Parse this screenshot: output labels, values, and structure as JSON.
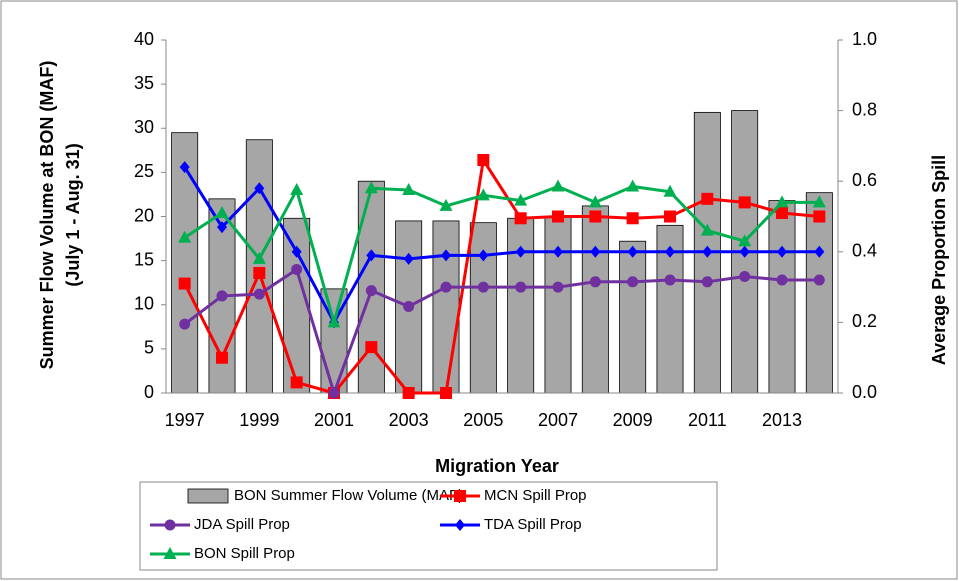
{
  "chart_data": {
    "type": "combo",
    "xlabel": "Migration Year",
    "ylabel": [
      "Summer Flow Volume at BON (MAF)",
      "(July 1 - Aug. 31)"
    ],
    "y2label": "Average Proportion Spill",
    "categories": [
      "1997",
      null,
      "1999",
      null,
      "2001",
      null,
      "2003",
      null,
      "2005",
      null,
      "2007",
      null,
      "2009",
      null,
      "2011",
      null,
      "2013",
      null
    ],
    "ylim": [
      0,
      40
    ],
    "yticks": [
      0,
      5,
      10,
      15,
      20,
      25,
      30,
      35,
      40
    ],
    "y2lim": [
      0,
      1
    ],
    "y2ticks": [
      {
        "value": 0,
        "label": "0.0"
      },
      0.2,
      0.4,
      0.6,
      0.8,
      {
        "value": 1,
        "label": "1.0"
      }
    ],
    "grid": false,
    "series": [
      {
        "name": "BON Summer Flow Volume (MAF)",
        "type": "bar",
        "color": "#a6a6a6",
        "values": [
          29.5,
          22,
          28.7,
          19.8,
          11.8,
          24,
          19.5,
          19.5,
          19.3,
          19.8,
          20,
          21.2,
          17.2,
          19,
          31.8,
          32,
          21.8,
          22.7
        ]
      },
      {
        "name": "MCN Spill Prop",
        "type": "line",
        "axis": "y2",
        "marker": "square",
        "color": "#ff0000",
        "values": [
          0.31,
          0.1,
          0.34,
          0.03,
          0,
          0.13,
          0,
          0,
          0.66,
          0.495,
          0.5,
          0.5,
          0.495,
          0.5,
          0.55,
          0.54,
          0.51,
          0.5
        ]
      },
      {
        "name": "JDA Spill Prop",
        "type": "line",
        "axis": "y2",
        "marker": "circle",
        "color": "#7030a0",
        "values": [
          0.195,
          0.275,
          0.28,
          0.35,
          0,
          0.29,
          0.245,
          0.3,
          0.3,
          0.3,
          0.3,
          0.315,
          0.315,
          0.32,
          0.315,
          0.33,
          0.32,
          0.32
        ]
      },
      {
        "name": "TDA Spill Prop",
        "type": "line",
        "axis": "y2",
        "marker": "diamond",
        "color": "#0000ff",
        "values": [
          0.64,
          0.47,
          0.58,
          0.4,
          0.2,
          0.39,
          0.38,
          0.39,
          0.39,
          0.4,
          0.4,
          0.4,
          0.4,
          0.4,
          0.4,
          0.4,
          0.4,
          0.4
        ]
      },
      {
        "name": "BON Spill Prop",
        "type": "line",
        "axis": "y2",
        "marker": "triangle",
        "color": "#00b050",
        "values": [
          0.44,
          0.51,
          0.38,
          0.575,
          0.2,
          0.58,
          0.575,
          0.53,
          0.56,
          0.545,
          0.585,
          0.54,
          0.585,
          0.57,
          0.46,
          0.43,
          0.54,
          0.54
        ]
      }
    ]
  }
}
